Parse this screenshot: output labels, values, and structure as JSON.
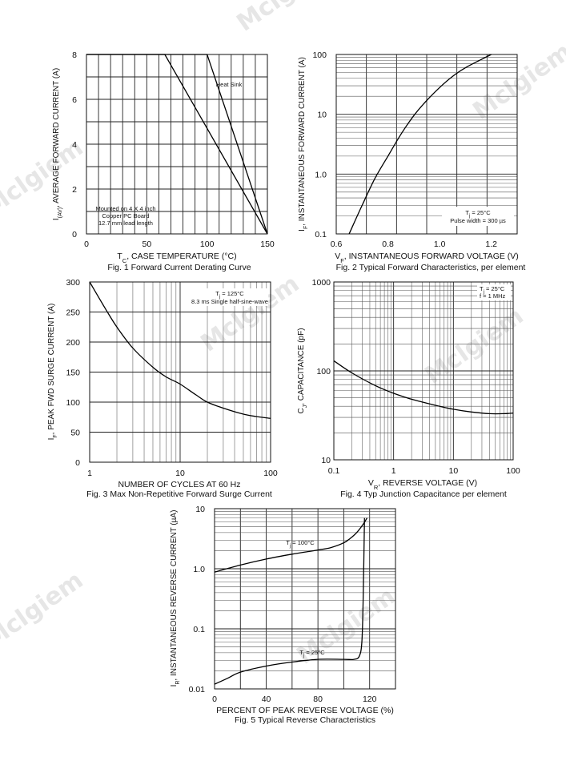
{
  "watermark": "Mclgiem",
  "chart_data": [
    {
      "id": "fig1",
      "type": "line",
      "title": "Fig. 1  Forward Current Derating Curve",
      "xlabel_main": "T",
      "xlabel_sub": "C",
      "xlabel_rest": ", CASE TEMPERATURE (°C)",
      "ylabel_main": "I",
      "ylabel_sub": "(AV)",
      "ylabel_rest": ", AVERAGE FORWARD CURRENT (A)",
      "xscale": "linear",
      "yscale": "linear",
      "xlim": [
        0,
        150
      ],
      "ylim": [
        0,
        8
      ],
      "xticks": [
        0,
        50,
        100,
        150
      ],
      "xtick_labels": [
        "0",
        "50",
        "100",
        "150"
      ],
      "yticks": [
        0,
        2,
        4,
        6,
        8
      ],
      "ytick_labels": [
        "0",
        "2",
        "4",
        "6",
        "8"
      ],
      "series": [
        {
          "name": "Heat Sink",
          "x": [
            0,
            100,
            150
          ],
          "y": [
            8,
            8,
            0
          ]
        },
        {
          "name": "Mounted on 4 X 4 inch Copper PC Board",
          "x": [
            0,
            65,
            150
          ],
          "y": [
            8,
            8,
            0
          ]
        }
      ],
      "annotations": [
        {
          "text": "Heat Sink"
        },
        {
          "text": "Mounted on 4 X 4 inch"
        },
        {
          "text": "Copper PC Board"
        },
        {
          "text": "12.7 mm lead length"
        }
      ]
    },
    {
      "id": "fig2",
      "type": "line",
      "title": "Fig. 2  Typical Forward Characteristics, per element",
      "xlabel_main": "V",
      "xlabel_sub": "F",
      "xlabel_rest": ", INSTANTANEOUS FORWARD VOLTAGE (V)",
      "ylabel_main": "I",
      "ylabel_sub": "F",
      "ylabel_rest": ", INSTANTANEOUS FORWARD CURRENT (A)",
      "xscale": "linear",
      "yscale": "log",
      "xlim": [
        0.6,
        1.3
      ],
      "ylim": [
        0.1,
        100
      ],
      "xticks": [
        0.6,
        0.8,
        1.0,
        1.2
      ],
      "xtick_labels": [
        "0.6",
        "0.8",
        "1.0",
        "1.2"
      ],
      "yticks": [
        0.1,
        1,
        10,
        100
      ],
      "ytick_labels": [
        "0.1",
        "1.0",
        "10",
        "100"
      ],
      "series": [
        {
          "name": "Tj = 25°C",
          "x": [
            0.65,
            0.7,
            0.75,
            0.8,
            0.85,
            0.9,
            0.95,
            1.0,
            1.05,
            1.1,
            1.15,
            1.2
          ],
          "y": [
            0.1,
            0.3,
            0.85,
            2.0,
            4.6,
            9.5,
            17,
            28,
            43,
            60,
            78,
            100
          ]
        }
      ],
      "annotations": [
        {
          "text_main": "T",
          "text_sub": "j",
          "text_rest": " = 25°C"
        },
        {
          "text": "Pulse width = 300 µs"
        }
      ]
    },
    {
      "id": "fig3",
      "type": "line",
      "title": "Fig. 3  Max Non-Repetitive Forward Surge Current",
      "xlabel": "NUMBER OF CYCLES AT 60 Hz",
      "ylabel_main": "I",
      "ylabel_sub": "F",
      "ylabel_rest": ", PEAK FWD SURGE CURRENT (A)",
      "xscale": "log",
      "yscale": "linear",
      "xlim": [
        1,
        100
      ],
      "ylim": [
        0,
        300
      ],
      "xticks": [
        1,
        10,
        100
      ],
      "xtick_labels": [
        "1",
        "10",
        "100"
      ],
      "yticks": [
        0,
        50,
        100,
        150,
        200,
        250,
        300
      ],
      "ytick_labels": [
        "0",
        "50",
        "100",
        "150",
        "200",
        "250",
        "300"
      ],
      "series": [
        {
          "name": "Tj = 125°C",
          "x": [
            1,
            1.5,
            2,
            3,
            5,
            7,
            10,
            15,
            20,
            30,
            50,
            70,
            100
          ],
          "y": [
            300,
            255,
            225,
            190,
            158,
            142,
            130,
            112,
            100,
            90,
            80,
            76,
            73
          ]
        }
      ],
      "annotations": [
        {
          "text_main": "T",
          "text_sub": "j",
          "text_rest": " = 125°C"
        },
        {
          "text": "8.3 ms Single half-sine-wave"
        }
      ]
    },
    {
      "id": "fig4",
      "type": "line",
      "title": "Fig. 4  Typ Junction Capacitance per element",
      "xlabel_main": "V",
      "xlabel_sub": "R",
      "xlabel_rest": ", REVERSE VOLTAGE (V)",
      "ylabel_main": "C",
      "ylabel_sub": "J",
      "ylabel_rest": ", CAPACITANCE (pF)",
      "xscale": "log",
      "yscale": "log",
      "xlim": [
        0.1,
        100
      ],
      "ylim": [
        10,
        1000
      ],
      "xticks": [
        0.1,
        1,
        10,
        100
      ],
      "xtick_labels": [
        "0.1",
        "1",
        "10",
        "100"
      ],
      "yticks": [
        10,
        100,
        1000
      ],
      "ytick_labels": [
        "10",
        "100",
        "1000"
      ],
      "series": [
        {
          "name": "Tj = 25°C, f = 1 MHz",
          "x": [
            0.1,
            0.2,
            0.5,
            1,
            2,
            5,
            10,
            20,
            40,
            70,
            100
          ],
          "y": [
            130,
            95,
            68,
            56,
            48,
            41,
            37,
            34.5,
            33,
            33,
            33.5
          ]
        }
      ],
      "annotations": [
        {
          "text_main": "T",
          "text_sub": "j",
          "text_rest": " = 25°C"
        },
        {
          "text": "f = 1 MHz"
        }
      ]
    },
    {
      "id": "fig5",
      "type": "line",
      "title": "Fig. 5  Typical Reverse Characteristics",
      "xlabel": "PERCENT OF PEAK REVERSE VOLTAGE (%)",
      "ylabel_main": "I",
      "ylabel_sub": "R",
      "ylabel_rest": ", INSTANTANEOUS REVERSE CURRENT (µA)",
      "xscale": "linear",
      "yscale": "log",
      "xlim": [
        0,
        140
      ],
      "ylim": [
        0.01,
        10
      ],
      "xticks": [
        0,
        40,
        80,
        120
      ],
      "xtick_labels": [
        "0",
        "40",
        "80",
        "120"
      ],
      "yticks": [
        0.01,
        0.1,
        1,
        10
      ],
      "ytick_labels": [
        "0.01",
        "0.1",
        "1.0",
        "10"
      ],
      "series": [
        {
          "name": "Tj = 100°C",
          "x": [
            0,
            20,
            40,
            60,
            80,
            90,
            100,
            105,
            110,
            115,
            118
          ],
          "y": [
            0.88,
            1.15,
            1.45,
            1.75,
            2.05,
            2.25,
            2.7,
            3.2,
            4.0,
            5.5,
            7.0
          ]
        },
        {
          "name": "Tj = 25°C",
          "x": [
            0,
            10,
            20,
            40,
            60,
            80,
            100,
            108,
            112,
            114,
            115,
            116
          ],
          "y": [
            0.012,
            0.015,
            0.019,
            0.024,
            0.028,
            0.031,
            0.031,
            0.031,
            0.035,
            0.06,
            0.3,
            7.0
          ]
        }
      ],
      "annotations": [
        {
          "text_main": "T",
          "text_sub": "j",
          "text_rest": " = 100°C"
        },
        {
          "text_main": "T",
          "text_sub": "j",
          "text_rest": " = 25°C"
        }
      ]
    }
  ]
}
